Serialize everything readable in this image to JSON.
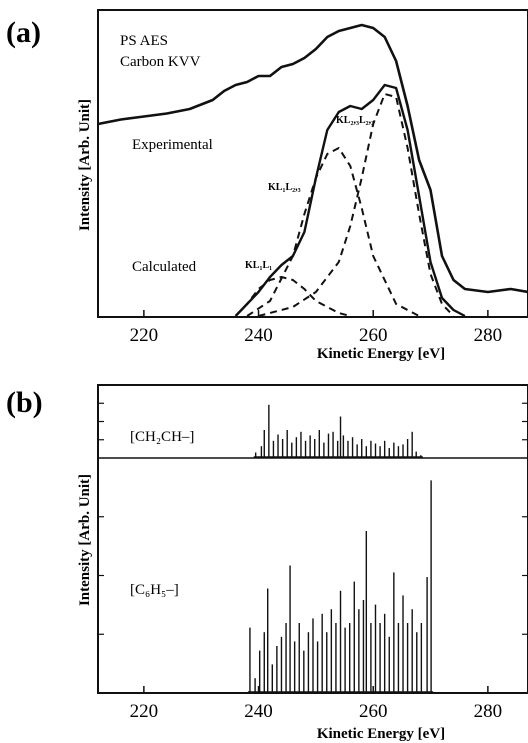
{
  "chart_data": [
    {
      "panel": "(a)",
      "type": "line",
      "annotations": {
        "title_lines": [
          "PS AES",
          "Carbon KVV"
        ],
        "experimental": "Experimental",
        "calculated": "Calculated",
        "peaks": [
          "KL₁L₁",
          "KL₁L₂,₃",
          "KL₂,₃L₂,₃"
        ]
      },
      "xlabel": "Kinetic Energy [eV]",
      "ylabel": "Intensity [Arb. Unit]",
      "xlim": [
        212,
        287
      ],
      "xticks": [
        220,
        240,
        260,
        280
      ],
      "series": [
        {
          "name": "Experimental",
          "style": "solid",
          "x": [
            212,
            216,
            220,
            224,
            228,
            232,
            234,
            236,
            238,
            240,
            242,
            244,
            246,
            248,
            250,
            252,
            254,
            256,
            258,
            260,
            262,
            264,
            266,
            268,
            270,
            272,
            274,
            276,
            280,
            284,
            287
          ],
          "y": [
            0.64,
            0.655,
            0.665,
            0.675,
            0.69,
            0.72,
            0.75,
            0.77,
            0.78,
            0.8,
            0.8,
            0.83,
            0.84,
            0.86,
            0.89,
            0.93,
            0.95,
            0.96,
            0.97,
            0.96,
            0.93,
            0.85,
            0.7,
            0.52,
            0.42,
            0.2,
            0.12,
            0.09,
            0.08,
            0.09,
            0.08
          ]
        },
        {
          "name": "Calculated",
          "style": "solid",
          "x": [
            236,
            238,
            240,
            242,
            244,
            246,
            248,
            250,
            252,
            254,
            256,
            258,
            260,
            262,
            264,
            266,
            268,
            270,
            272,
            274,
            276
          ],
          "y": [
            0.0,
            0.04,
            0.08,
            0.13,
            0.17,
            0.2,
            0.28,
            0.46,
            0.62,
            0.68,
            0.7,
            0.69,
            0.72,
            0.77,
            0.76,
            0.62,
            0.4,
            0.18,
            0.06,
            0.02,
            0.0
          ]
        },
        {
          "name": "KL₁L₁",
          "style": "dashed",
          "x": [
            236,
            238,
            240,
            242,
            244,
            246,
            248,
            250,
            252,
            254,
            256
          ],
          "y": [
            0.0,
            0.04,
            0.09,
            0.12,
            0.13,
            0.12,
            0.09,
            0.05,
            0.03,
            0.01,
            0.0
          ]
        },
        {
          "name": "KL₁L₂,₃",
          "style": "dashed",
          "x": [
            238,
            242,
            246,
            248,
            250,
            252,
            254,
            256,
            258,
            260,
            264,
            268
          ],
          "y": [
            0.0,
            0.05,
            0.2,
            0.34,
            0.46,
            0.54,
            0.56,
            0.5,
            0.36,
            0.2,
            0.04,
            0.0
          ]
        },
        {
          "name": "KL₂,₃L₂,₃",
          "style": "dashed",
          "x": [
            240,
            246,
            250,
            254,
            256,
            258,
            260,
            262,
            264,
            266,
            268,
            270,
            272,
            274
          ],
          "y": [
            0.0,
            0.03,
            0.08,
            0.18,
            0.3,
            0.46,
            0.64,
            0.74,
            0.73,
            0.56,
            0.34,
            0.14,
            0.04,
            0.0
          ]
        }
      ]
    },
    {
      "panel": "(b)",
      "type": "bar",
      "xlabel": "Kinetic Energy [eV]",
      "ylabel": "Intensity [Arb. Unit]",
      "xlim": [
        212,
        287
      ],
      "xticks": [
        220,
        240,
        260,
        280
      ],
      "subplots": [
        {
          "label": "[CH₂CH–]",
          "x": [
            239.5,
            240.5,
            241.0,
            241.8,
            242.6,
            243.4,
            244.2,
            245.0,
            245.8,
            246.6,
            247.4,
            248.2,
            249.0,
            249.8,
            250.6,
            251.4,
            252.2,
            253.0,
            253.8,
            254.3,
            254.8,
            255.6,
            256.4,
            257.2,
            258.0,
            258.8,
            259.6,
            260.4,
            261.2,
            262.0,
            262.8,
            263.6,
            264.4,
            265.2,
            266.0,
            266.8,
            267.5,
            268.3
          ],
          "values": [
            0.05,
            0.12,
            0.3,
            0.58,
            0.18,
            0.25,
            0.2,
            0.3,
            0.16,
            0.22,
            0.28,
            0.18,
            0.24,
            0.2,
            0.3,
            0.16,
            0.26,
            0.28,
            0.18,
            0.45,
            0.24,
            0.18,
            0.22,
            0.14,
            0.2,
            0.12,
            0.18,
            0.15,
            0.12,
            0.18,
            0.1,
            0.16,
            0.12,
            0.14,
            0.2,
            0.28,
            0.06,
            0.02
          ]
        },
        {
          "label": "[C₆H₅–]",
          "x": [
            238.5,
            239.4,
            240.2,
            241.0,
            241.6,
            242.4,
            243.2,
            244.0,
            244.8,
            245.5,
            246.3,
            247.1,
            247.9,
            248.7,
            249.5,
            250.3,
            251.1,
            251.9,
            252.7,
            253.5,
            254.3,
            255.1,
            255.9,
            256.7,
            257.5,
            258.3,
            258.8,
            259.6,
            260.4,
            261.2,
            262.0,
            262.8,
            263.6,
            264.4,
            265.2,
            266.0,
            266.8,
            267.6,
            268.4,
            269.4,
            270.1
          ],
          "values": [
            0.28,
            0.06,
            0.18,
            0.26,
            0.45,
            0.12,
            0.2,
            0.24,
            0.3,
            0.55,
            0.22,
            0.3,
            0.18,
            0.26,
            0.32,
            0.22,
            0.34,
            0.26,
            0.36,
            0.3,
            0.44,
            0.28,
            0.3,
            0.48,
            0.36,
            0.4,
            0.7,
            0.3,
            0.38,
            0.3,
            0.34,
            0.24,
            0.52,
            0.3,
            0.42,
            0.3,
            0.36,
            0.26,
            0.3,
            0.5,
            0.92
          ]
        }
      ]
    }
  ]
}
